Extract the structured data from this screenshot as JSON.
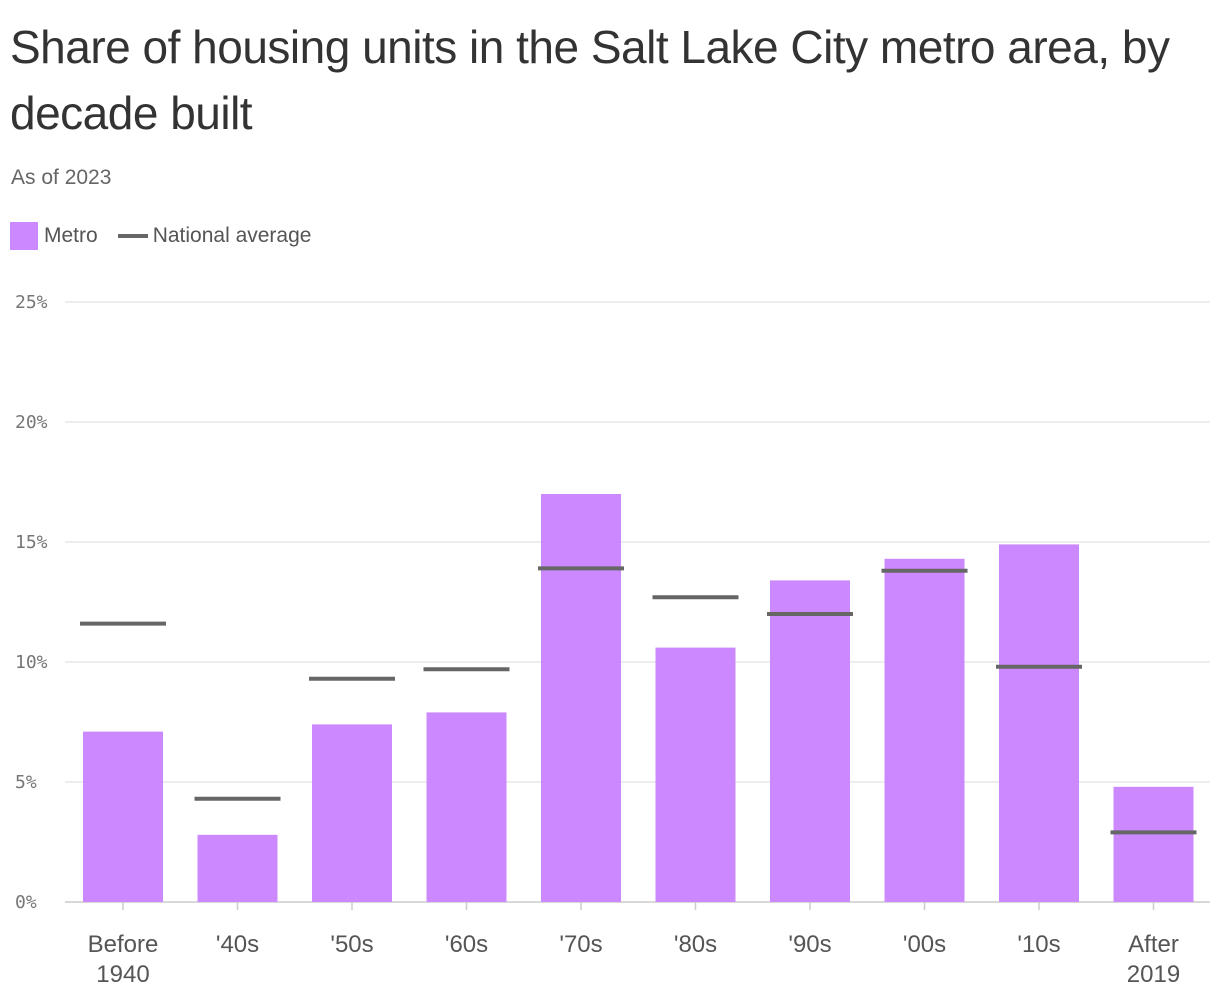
{
  "title": "Share of housing units in the Salt Lake City metro area, by decade built",
  "subtitle": "As of 2023",
  "legend": {
    "metro": "Metro",
    "national": "National average"
  },
  "colors": {
    "metro": "#cc88ff",
    "national": "#666666",
    "grid": "#e2e2e2",
    "axis": "#cccccc"
  },
  "chart_data": {
    "type": "bar",
    "categories": [
      [
        "Before",
        "1940"
      ],
      [
        "'40s"
      ],
      [
        "'50s"
      ],
      [
        "'60s"
      ],
      [
        "'70s"
      ],
      [
        "'80s"
      ],
      [
        "'90s"
      ],
      [
        "'00s"
      ],
      [
        "'10s"
      ],
      [
        "After",
        "2019"
      ]
    ],
    "series": [
      {
        "name": "Metro",
        "values": [
          7.1,
          2.8,
          7.4,
          7.9,
          17.0,
          10.6,
          13.4,
          14.3,
          14.9,
          4.8
        ]
      },
      {
        "name": "National average",
        "values": [
          11.6,
          4.3,
          9.3,
          9.7,
          13.9,
          12.7,
          12.0,
          13.8,
          9.8,
          2.9
        ]
      }
    ],
    "ylim": [
      0,
      25
    ],
    "yticks": [
      0,
      5,
      10,
      15,
      20,
      25
    ],
    "ytick_labels": [
      "0%",
      "5%",
      "10%",
      "15%",
      "20%",
      "25%"
    ],
    "grid": true,
    "legend_position": "top-left"
  }
}
